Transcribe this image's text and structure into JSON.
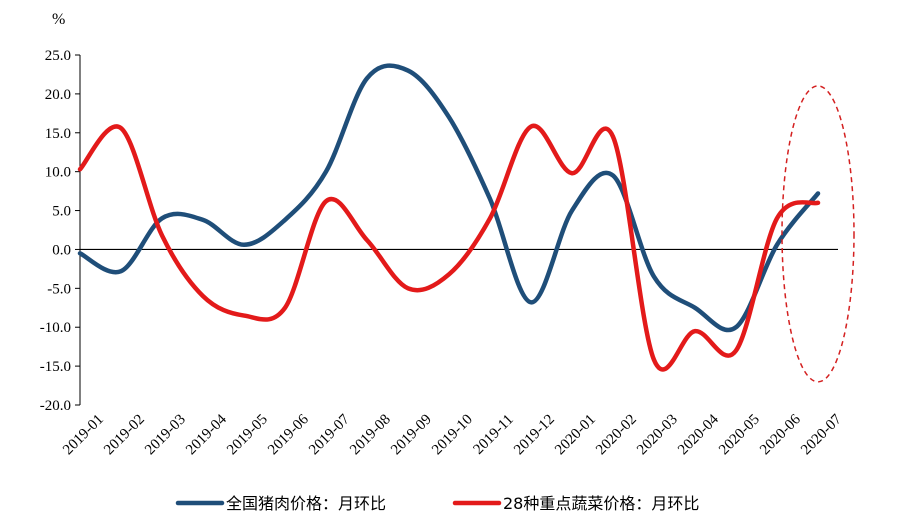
{
  "chart_data": {
    "type": "line",
    "title": "",
    "ylabel": "%",
    "xlabel": "",
    "ylim": [
      -20,
      25
    ],
    "yticks": [
      "25.0",
      "20.0",
      "15.0",
      "10.0",
      "5.0",
      "0.0",
      "-5.0",
      "-10.0",
      "-15.0",
      "-20.0"
    ],
    "categories": [
      "2019-01",
      "2019-02",
      "2019-03",
      "2019-04",
      "2019-05",
      "2019-06",
      "2019-07",
      "2019-08",
      "2019-09",
      "2019-10",
      "2019-11",
      "2019-12",
      "2020-01",
      "2020-02",
      "2020-03",
      "2020-04",
      "2020-05",
      "2020-06",
      "2020-07"
    ],
    "series": [
      {
        "name": "全国猪肉价格：月环比",
        "color": "#1f4e79",
        "values": [
          -0.5,
          -2.8,
          4.0,
          3.8,
          0.6,
          3.8,
          10.0,
          22.0,
          23.0,
          17.0,
          6.5,
          -6.8,
          5.0,
          9.5,
          -3.5,
          -7.5,
          -10.0,
          0.6,
          7.2
        ]
      },
      {
        "name": "28种重点蔬菜价格：月环比",
        "color": "#e31a1a",
        "values": [
          10.3,
          15.6,
          1.8,
          -6.0,
          -8.5,
          -7.5,
          6.2,
          1.2,
          -5.0,
          -3.2,
          4.0,
          15.8,
          9.8,
          14.5,
          -14.2,
          -10.5,
          -13.0,
          4.0,
          6.0
        ]
      }
    ],
    "annotations": [
      {
        "type": "dashed-ellipse",
        "color": "#d42020",
        "around_category": "2020-07"
      }
    ],
    "legend_position": "bottom",
    "grid": false
  }
}
